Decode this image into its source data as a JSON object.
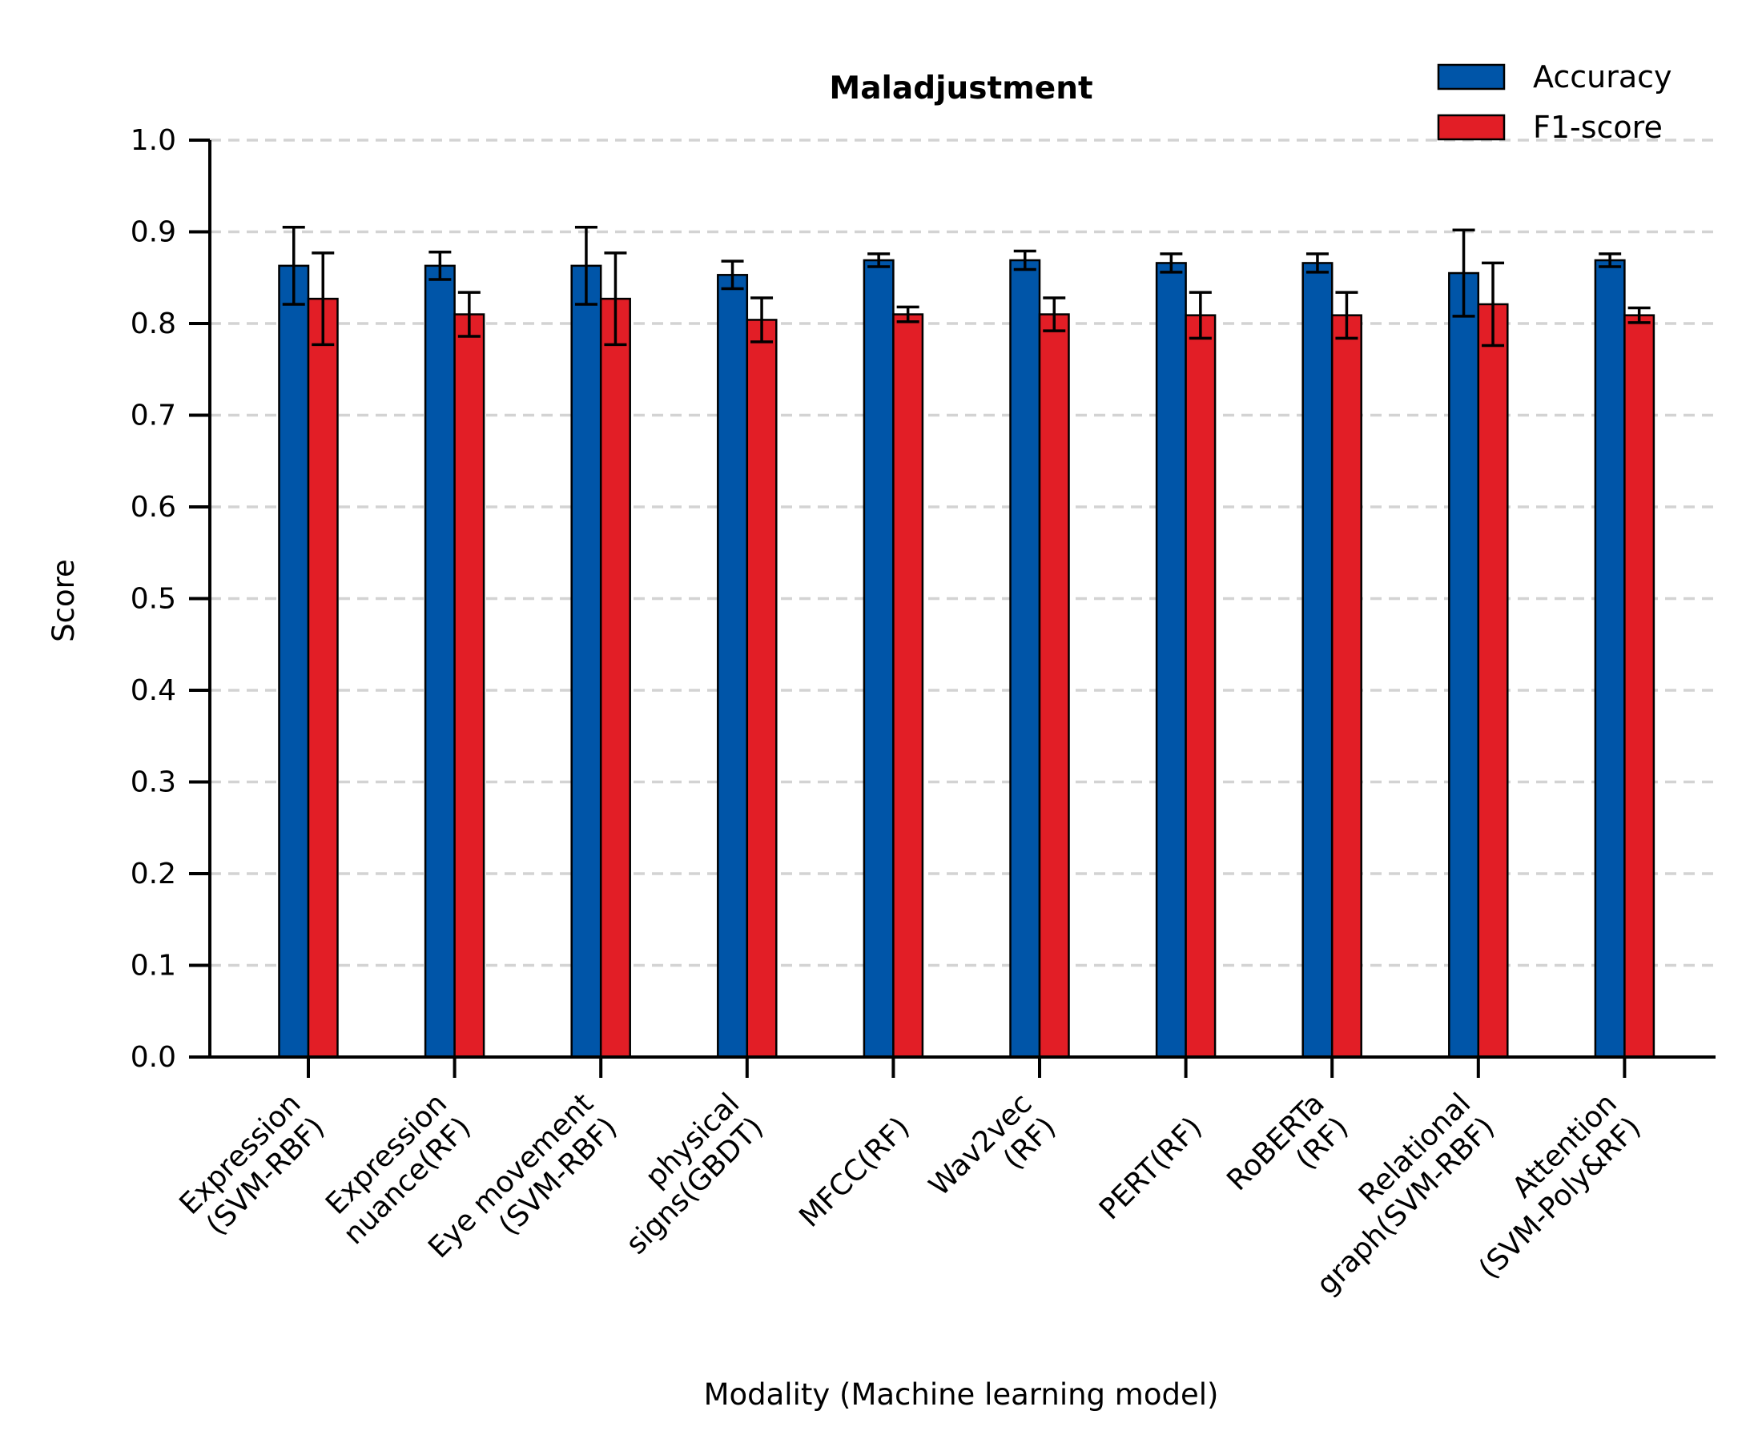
{
  "chart_data": {
    "type": "bar",
    "title": "Maladjustment",
    "xlabel": "Modality (Machine learning model)",
    "ylabel": "Score",
    "ylim": [
      0.0,
      1.0
    ],
    "yticks": [
      "0.0",
      "0.1",
      "0.2",
      "0.3",
      "0.4",
      "0.5",
      "0.6",
      "0.7",
      "0.8",
      "0.9",
      "1.0"
    ],
    "grid": "horizontal dashed",
    "legend_position": "top-right",
    "categories": [
      [
        "Expression",
        "(SVM-RBF)"
      ],
      [
        "Expression",
        "nuance(RF)"
      ],
      [
        "Eye movement",
        "(SVM-RBF)"
      ],
      [
        "physical",
        "signs(GBDT)"
      ],
      [
        "MFCC(RF)"
      ],
      [
        "Wav2vec",
        "(RF)"
      ],
      [
        "PERT(RF)"
      ],
      [
        "RoBERTa",
        "(RF)"
      ],
      [
        "Relational",
        "graph(SVM-RBF)"
      ],
      [
        "Attention",
        "(SVM-Poly&RF)"
      ]
    ],
    "series": [
      {
        "name": "Accuracy",
        "color": "#0055a8",
        "values": [
          0.863,
          0.863,
          0.863,
          0.853,
          0.869,
          0.869,
          0.866,
          0.866,
          0.855,
          0.869
        ],
        "errors": [
          0.042,
          0.015,
          0.042,
          0.015,
          0.007,
          0.01,
          0.01,
          0.01,
          0.047,
          0.007
        ]
      },
      {
        "name": "F1-score",
        "color": "#e21e26",
        "values": [
          0.827,
          0.81,
          0.827,
          0.804,
          0.81,
          0.81,
          0.809,
          0.809,
          0.821,
          0.809
        ],
        "errors": [
          0.05,
          0.024,
          0.05,
          0.024,
          0.008,
          0.018,
          0.025,
          0.025,
          0.045,
          0.008
        ]
      }
    ]
  }
}
